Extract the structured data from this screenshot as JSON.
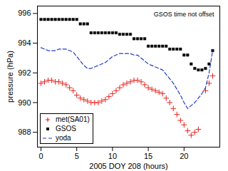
{
  "chart_data": {
    "type": "line",
    "x_label": "2005 DOY 208 (hours)",
    "y_label": "pressure (hPa)",
    "annotation": "GSOS time not offset",
    "xlim": [
      -0.5,
      25
    ],
    "xticks": [
      0,
      5,
      10,
      15,
      20
    ],
    "ylim": [
      987,
      996.5
    ],
    "yticks": [
      988,
      990,
      992,
      994,
      996
    ],
    "grid": false,
    "legend": "lower left",
    "x": [
      0,
      0.5,
      1,
      1.5,
      2,
      2.5,
      3,
      3.5,
      4,
      4.5,
      5,
      5.5,
      6,
      6.5,
      7,
      7.5,
      8,
      8.5,
      9,
      9.5,
      10,
      10.5,
      11,
      11.5,
      12,
      12.5,
      13,
      13.5,
      14,
      14.5,
      15,
      15.5,
      16,
      16.5,
      17,
      17.5,
      18,
      18.5,
      19,
      19.5,
      20,
      20.5,
      21,
      21.5,
      22,
      22.5,
      23,
      23.5,
      24
    ],
    "series": [
      {
        "name": "met(SA01)",
        "color": "#e8221e",
        "marker": "plus",
        "line_style": "none",
        "values": [
          991.3,
          991.4,
          991.5,
          991.5,
          991.4,
          991.4,
          991.3,
          991.2,
          991.0,
          990.8,
          990.5,
          990.3,
          990.2,
          990.1,
          990.0,
          990.0,
          990.0,
          990.1,
          990.2,
          990.4,
          990.6,
          990.8,
          991.0,
          991.2,
          991.3,
          991.4,
          991.5,
          991.5,
          991.4,
          991.2,
          991.0,
          990.9,
          990.8,
          990.7,
          990.6,
          990.3,
          990.0,
          989.6,
          989.2,
          988.8,
          988.5,
          988.1,
          987.8,
          988.0,
          988.2,
          null,
          990.8,
          991.3,
          991.8
        ]
      },
      {
        "name": "GSOS",
        "color": "#000000",
        "marker": "square",
        "line_style": "none",
        "values": [
          995.6,
          995.6,
          995.6,
          995.6,
          995.6,
          995.6,
          995.6,
          995.6,
          995.6,
          995.6,
          995.6,
          995.3,
          995.3,
          995.3,
          994.7,
          994.7,
          994.7,
          994.7,
          994.7,
          994.7,
          994.7,
          994.7,
          994.6,
          994.6,
          994.6,
          994.6,
          994.3,
          994.3,
          994.3,
          994.3,
          993.8,
          993.8,
          993.8,
          993.8,
          993.8,
          993.8,
          993.6,
          993.6,
          993.6,
          993.6,
          993.2,
          993.2,
          992.6,
          992.3,
          992.2,
          992.2,
          992.3,
          992.6,
          993.5
        ]
      },
      {
        "name": "yoda",
        "color": "#1f3fbf",
        "marker": "none",
        "line_style": "dashed",
        "values": [
          993.7,
          993.6,
          993.5,
          993.5,
          993.5,
          993.6,
          993.6,
          993.6,
          993.5,
          993.4,
          993.1,
          992.8,
          992.5,
          992.3,
          992.3,
          992.4,
          992.5,
          992.6,
          992.7,
          992.9,
          993.1,
          993.2,
          993.3,
          993.3,
          993.3,
          993.3,
          993.2,
          993.2,
          993.0,
          992.8,
          992.6,
          992.5,
          992.4,
          992.3,
          992.2,
          991.9,
          991.6,
          991.3,
          990.9,
          990.5,
          990.0,
          989.6,
          989.8,
          990.0,
          990.3,
          990.6,
          991.0,
          992.0,
          993.5
        ]
      }
    ]
  }
}
